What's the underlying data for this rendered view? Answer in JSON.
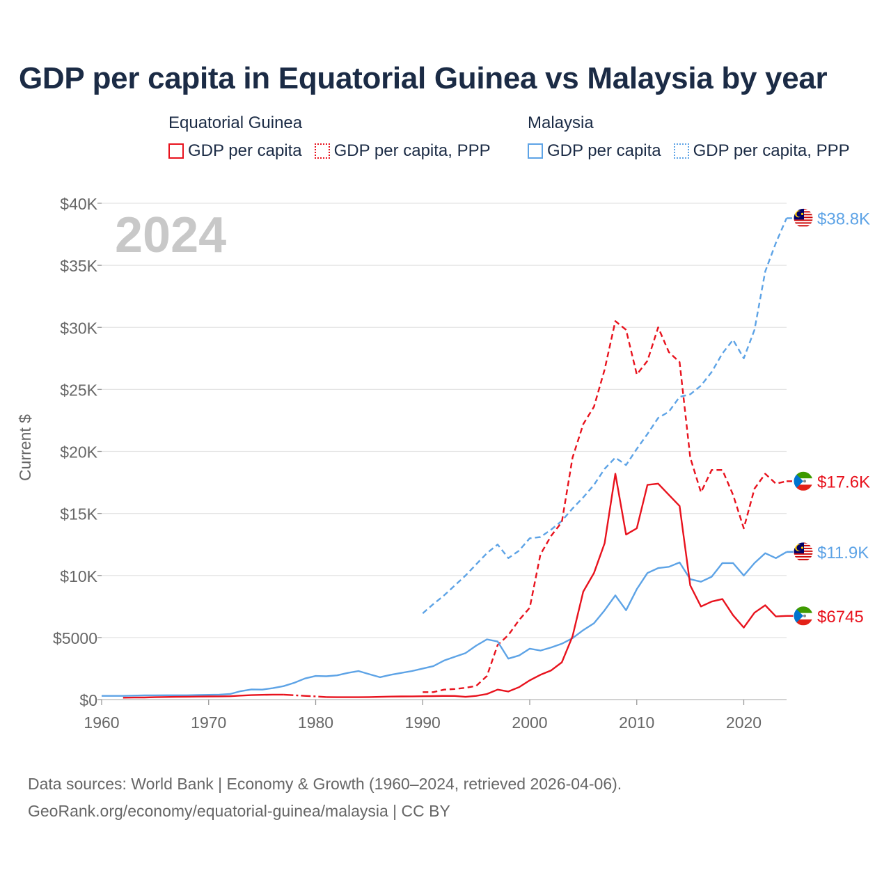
{
  "title": "GDP per capita in Equatorial Guinea vs Malaysia by year",
  "legend": {
    "groups": [
      {
        "country": "Equatorial Guinea",
        "color": "#e8121d",
        "items": [
          {
            "label": "GDP per capita",
            "style": "solid"
          },
          {
            "label": "GDP per capita, PPP",
            "style": "dotted"
          }
        ]
      },
      {
        "country": "Malaysia",
        "color": "#5da3e6",
        "items": [
          {
            "label": "GDP per capita",
            "style": "solid"
          },
          {
            "label": "GDP per capita, PPP",
            "style": "dotted"
          }
        ]
      }
    ]
  },
  "year_overlay": "2024",
  "footer": {
    "line1": "Data sources: World Bank | Economy & Growth (1960–2024, retrieved 2026-04-06).",
    "line2": "GeoRank.org/economy/equatorial-guinea/malaysia | CC BY"
  },
  "chart_data": {
    "type": "line",
    "title": "GDP per capita in Equatorial Guinea vs Malaysia by year",
    "xlabel": "",
    "ylabel": "Current $",
    "xlim": [
      1960,
      2024
    ],
    "ylim": [
      0,
      40000
    ],
    "x_ticks": [
      1960,
      1970,
      1980,
      1990,
      2000,
      2010,
      2020
    ],
    "y_ticks": [
      {
        "value": 0,
        "label": "$0"
      },
      {
        "value": 5000,
        "label": "$5000"
      },
      {
        "value": 10000,
        "label": "$10K"
      },
      {
        "value": 15000,
        "label": "$15K"
      },
      {
        "value": 20000,
        "label": "$20K"
      },
      {
        "value": 25000,
        "label": "$25K"
      },
      {
        "value": 30000,
        "label": "$30K"
      },
      {
        "value": 35000,
        "label": "$35K"
      },
      {
        "value": 40000,
        "label": "$40K"
      }
    ],
    "grid": true,
    "series": [
      {
        "name": "Malaysia GDP per capita, PPP",
        "country": "Malaysia",
        "color": "#5da3e6",
        "dash": "dashed",
        "end_label": "$38.8K",
        "points": [
          [
            1990,
            6950
          ],
          [
            1991,
            7700
          ],
          [
            1992,
            8400
          ],
          [
            1993,
            9200
          ],
          [
            1994,
            10000
          ],
          [
            1995,
            10900
          ],
          [
            1996,
            11800
          ],
          [
            1997,
            12500
          ],
          [
            1998,
            11400
          ],
          [
            1999,
            12000
          ],
          [
            2000,
            13000
          ],
          [
            2001,
            13100
          ],
          [
            2002,
            13700
          ],
          [
            2003,
            14400
          ],
          [
            2004,
            15400
          ],
          [
            2005,
            16300
          ],
          [
            2006,
            17300
          ],
          [
            2007,
            18600
          ],
          [
            2008,
            19500
          ],
          [
            2009,
            18900
          ],
          [
            2010,
            20200
          ],
          [
            2011,
            21400
          ],
          [
            2012,
            22700
          ],
          [
            2013,
            23200
          ],
          [
            2014,
            24400
          ],
          [
            2015,
            24600
          ],
          [
            2016,
            25300
          ],
          [
            2017,
            26400
          ],
          [
            2018,
            27900
          ],
          [
            2019,
            29000
          ],
          [
            2020,
            27500
          ],
          [
            2021,
            29800
          ],
          [
            2022,
            34500
          ],
          [
            2023,
            36800
          ],
          [
            2024,
            38800
          ]
        ]
      },
      {
        "name": "Equatorial Guinea GDP per capita, PPP",
        "country": "Equatorial Guinea",
        "color": "#e8121d",
        "dash": "dashed",
        "end_label": "$17.6K",
        "points": [
          [
            1990,
            600
          ],
          [
            1991,
            600
          ],
          [
            1992,
            800
          ],
          [
            1993,
            850
          ],
          [
            1994,
            950
          ],
          [
            1995,
            1100
          ],
          [
            1996,
            1900
          ],
          [
            1997,
            4400
          ],
          [
            1998,
            5200
          ],
          [
            1999,
            6400
          ],
          [
            2000,
            7400
          ],
          [
            2001,
            11700
          ],
          [
            2002,
            13200
          ],
          [
            2003,
            14300
          ],
          [
            2004,
            19500
          ],
          [
            2005,
            22200
          ],
          [
            2006,
            23600
          ],
          [
            2007,
            26600
          ],
          [
            2008,
            30500
          ],
          [
            2009,
            29800
          ],
          [
            2010,
            26200
          ],
          [
            2011,
            27300
          ],
          [
            2012,
            30000
          ],
          [
            2013,
            28000
          ],
          [
            2014,
            27200
          ],
          [
            2015,
            19500
          ],
          [
            2016,
            16700
          ],
          [
            2017,
            18500
          ],
          [
            2018,
            18500
          ],
          [
            2019,
            16500
          ],
          [
            2020,
            13800
          ],
          [
            2021,
            17000
          ],
          [
            2022,
            18200
          ],
          [
            2023,
            17400
          ],
          [
            2024,
            17600
          ]
        ]
      },
      {
        "name": "Malaysia GDP per capita",
        "country": "Malaysia",
        "color": "#5da3e6",
        "dash": "solid",
        "end_label": "$11.9K",
        "points": [
          [
            1960,
            300
          ],
          [
            1961,
            300
          ],
          [
            1962,
            300
          ],
          [
            1963,
            320
          ],
          [
            1964,
            340
          ],
          [
            1965,
            340
          ],
          [
            1966,
            350
          ],
          [
            1967,
            350
          ],
          [
            1968,
            350
          ],
          [
            1969,
            370
          ],
          [
            1970,
            380
          ],
          [
            1971,
            400
          ],
          [
            1972,
            450
          ],
          [
            1973,
            680
          ],
          [
            1974,
            820
          ],
          [
            1975,
            800
          ],
          [
            1976,
            920
          ],
          [
            1977,
            1080
          ],
          [
            1978,
            1350
          ],
          [
            1979,
            1700
          ],
          [
            1980,
            1900
          ],
          [
            1981,
            1880
          ],
          [
            1982,
            1950
          ],
          [
            1983,
            2150
          ],
          [
            1984,
            2300
          ],
          [
            1985,
            2050
          ],
          [
            1986,
            1800
          ],
          [
            1987,
            2000
          ],
          [
            1988,
            2150
          ],
          [
            1989,
            2300
          ],
          [
            1990,
            2500
          ],
          [
            1991,
            2700
          ],
          [
            1992,
            3150
          ],
          [
            1993,
            3450
          ],
          [
            1994,
            3750
          ],
          [
            1995,
            4350
          ],
          [
            1996,
            4850
          ],
          [
            1997,
            4680
          ],
          [
            1998,
            3300
          ],
          [
            1999,
            3550
          ],
          [
            2000,
            4100
          ],
          [
            2001,
            3950
          ],
          [
            2002,
            4200
          ],
          [
            2003,
            4500
          ],
          [
            2004,
            4950
          ],
          [
            2005,
            5600
          ],
          [
            2006,
            6150
          ],
          [
            2007,
            7200
          ],
          [
            2008,
            8400
          ],
          [
            2009,
            7200
          ],
          [
            2010,
            8900
          ],
          [
            2011,
            10200
          ],
          [
            2012,
            10600
          ],
          [
            2013,
            10700
          ],
          [
            2014,
            11050
          ],
          [
            2015,
            9700
          ],
          [
            2016,
            9500
          ],
          [
            2017,
            9900
          ],
          [
            2018,
            11000
          ],
          [
            2019,
            11000
          ],
          [
            2020,
            10000
          ],
          [
            2021,
            11000
          ],
          [
            2022,
            11800
          ],
          [
            2023,
            11400
          ],
          [
            2024,
            11900
          ]
        ]
      },
      {
        "name": "Equatorial Guinea GDP per capita",
        "country": "Equatorial Guinea",
        "color": "#e8121d",
        "dash": "solid",
        "end_label": "$6745",
        "points": [
          [
            1962,
            150
          ],
          [
            1963,
            160
          ],
          [
            1964,
            170
          ],
          [
            1965,
            190
          ],
          [
            1966,
            210
          ],
          [
            1967,
            220
          ],
          [
            1968,
            230
          ],
          [
            1969,
            240
          ],
          [
            1970,
            250
          ],
          [
            1971,
            260
          ],
          [
            1972,
            270
          ],
          [
            1973,
            320
          ],
          [
            1974,
            360
          ],
          [
            1975,
            380
          ],
          [
            1976,
            400
          ],
          [
            1977,
            400
          ],
          [
            1978,
            350,
            "gap"
          ],
          [
            1979,
            300,
            "gap"
          ],
          [
            1980,
            260,
            "gap"
          ],
          [
            1981,
            200
          ],
          [
            1982,
            190
          ],
          [
            1983,
            190
          ],
          [
            1984,
            190
          ],
          [
            1985,
            200
          ],
          [
            1986,
            220
          ],
          [
            1987,
            240
          ],
          [
            1988,
            250
          ],
          [
            1989,
            260
          ],
          [
            1990,
            270
          ],
          [
            1991,
            280
          ],
          [
            1992,
            300
          ],
          [
            1993,
            290
          ],
          [
            1994,
            220
          ],
          [
            1995,
            300
          ],
          [
            1996,
            450
          ],
          [
            1997,
            800
          ],
          [
            1998,
            650
          ],
          [
            1999,
            1000
          ],
          [
            2000,
            1550
          ],
          [
            2001,
            2000
          ],
          [
            2002,
            2350
          ],
          [
            2003,
            3000
          ],
          [
            2004,
            5100
          ],
          [
            2005,
            8700
          ],
          [
            2006,
            10200
          ],
          [
            2007,
            12600
          ],
          [
            2008,
            18200
          ],
          [
            2009,
            13300
          ],
          [
            2010,
            13800
          ],
          [
            2011,
            17300
          ],
          [
            2012,
            17400
          ],
          [
            2013,
            16500
          ],
          [
            2014,
            15600
          ],
          [
            2015,
            9200
          ],
          [
            2016,
            7500
          ],
          [
            2017,
            7900
          ],
          [
            2018,
            8100
          ],
          [
            2019,
            6800
          ],
          [
            2020,
            5800
          ],
          [
            2021,
            7000
          ],
          [
            2022,
            7600
          ],
          [
            2023,
            6700
          ],
          [
            2024,
            6745
          ]
        ]
      }
    ]
  }
}
